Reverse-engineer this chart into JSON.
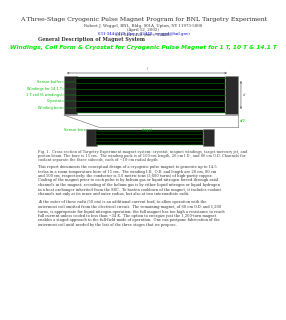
{
  "title": "A Three-Stage Cryogenic Pulse Magnet Program for BNL Targetry Experiment",
  "author": "Robert J. Weggel, BNL, Bldg. 901A, Upton, NY 11973-5000",
  "date": "(April 12, 2002)",
  "contact_pre": "631-344-2428 (fax = 32448; ",
  "contact_email": "weggel@bnl.gov",
  "contact_post": ")",
  "section_header": "General Description of Magnet System",
  "fig_title": "Windings, Coil Form & Cryostat for Cryogenic Pulse Magnet for 1 T, 10 T & 14.1 T",
  "fig_caption_line1": "Fig. 1.  Cross section of Targetry Experiment magnet system: cryostat, magnet windings, target mercury jet, and",
  "fig_caption_line2": "proton beam. The bore is 15 cm.  The winding pack is of 100-cm length, 20 cm I.D., and 80 cm O.D. Channels for",
  "fig_caption_line3": "coolant separate the three subcoils, each of ~10-cm radial depth.",
  "body1_lines": [
    "This report documents the conceptual design of a cryogenic pulse magnet to generate up to 14.5",
    "teslas in a room-temperature bore of 15 cm.  The winding I.D., O.D. and length are 20 cm, 80 cm",
    "and 100 cm, respectively; the conductor is 3.6 metric tons (3,600 turns) of high-purity copper.",
    "Cooling of the magnet prior to each pulse is by helium gas or liquid nitrogen forced through axial",
    "channels in the magnet; recooling of the helium gas is by either liquid nitrogen or liquid hydrogen",
    "in a heat exchanger inherited from the SSC.  To hasten cooldown of the magnet, it includes coolant",
    "channels not only at its inner and outer radius, but also at two intermediate radii."
  ],
  "body2_lines": [
    "At the outer of these radii (50 cm) is an additional current lead, to allow operation with the",
    "outermost coil omitted from the electrical circuit.  The remaining magnet, of 60 cm O.D. and 1,200",
    "turns, is appropriate for liquid nitrogen operation; the full magnet has too high a resistance to reach",
    "full current unless cooled to less than ~34 K.  The option to energize just the 1,200-turn magnet",
    "enables a staged approach to the full-field mode of operation.  One can postpone fabrication of the",
    "outermost coil until needed by the last of the three stages that we propose."
  ],
  "left_labels": [
    "Sensor buffer",
    "Windings for 14.1 T",
    "1 T coil (6 windings)",
    "Cryostat",
    "Winding bore"
  ],
  "bottom_labels": [
    "Sensor bore",
    "target",
    "d/2"
  ],
  "background_color": "#ffffff",
  "fig_title_color": "#00ee00",
  "label_color": "#00bb00",
  "text_color": "#333333",
  "caption_color": "#444444"
}
